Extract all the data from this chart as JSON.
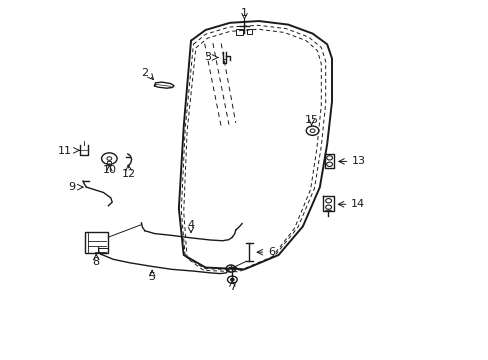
{
  "bg_color": "#ffffff",
  "line_color": "#1a1a1a",
  "fig_width": 4.89,
  "fig_height": 3.6,
  "dpi": 100,
  "door_outer": {
    "x": [
      0.39,
      0.42,
      0.47,
      0.53,
      0.59,
      0.64,
      0.67,
      0.68,
      0.68,
      0.67,
      0.655,
      0.62,
      0.57,
      0.5,
      0.42,
      0.375,
      0.365,
      0.375,
      0.39
    ],
    "y": [
      0.89,
      0.92,
      0.94,
      0.945,
      0.935,
      0.91,
      0.88,
      0.84,
      0.72,
      0.6,
      0.48,
      0.37,
      0.29,
      0.25,
      0.255,
      0.29,
      0.42,
      0.65,
      0.89
    ]
  },
  "door_inner1": {
    "x": [
      0.395,
      0.42,
      0.468,
      0.528,
      0.585,
      0.632,
      0.658,
      0.667,
      0.667,
      0.658,
      0.644,
      0.61,
      0.562,
      0.493,
      0.418,
      0.378,
      0.37,
      0.378,
      0.395
    ],
    "y": [
      0.88,
      0.908,
      0.928,
      0.933,
      0.924,
      0.9,
      0.871,
      0.832,
      0.715,
      0.595,
      0.477,
      0.368,
      0.288,
      0.248,
      0.252,
      0.286,
      0.416,
      0.643,
      0.88
    ]
  },
  "door_inner2": {
    "x": [
      0.4,
      0.424,
      0.47,
      0.528,
      0.582,
      0.627,
      0.65,
      0.658,
      0.658,
      0.649,
      0.636,
      0.603,
      0.556,
      0.488,
      0.416,
      0.382,
      0.375,
      0.382,
      0.4
    ],
    "y": [
      0.87,
      0.897,
      0.916,
      0.922,
      0.913,
      0.89,
      0.862,
      0.825,
      0.71,
      0.59,
      0.474,
      0.365,
      0.283,
      0.243,
      0.247,
      0.281,
      0.411,
      0.637,
      0.87
    ]
  }
}
